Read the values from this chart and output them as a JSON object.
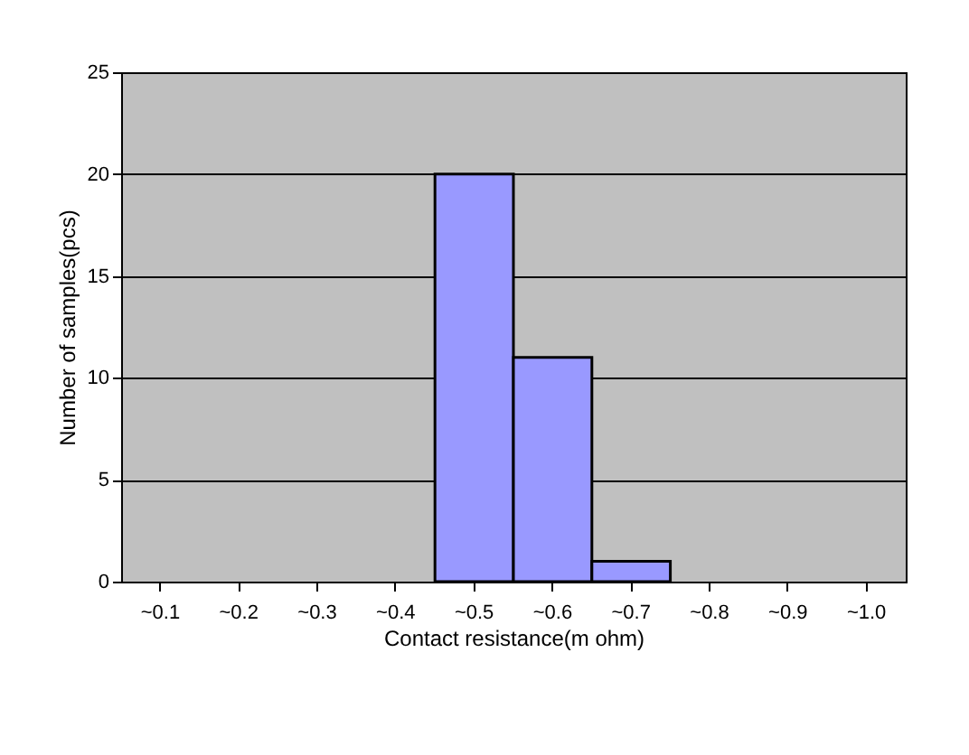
{
  "chart_data": {
    "type": "bar",
    "xlabel": "Contact  resistance(m ohm)",
    "ylabel": "Number  of samples(pcs)",
    "categories": [
      "~0.1",
      "~0.2",
      "~0.3",
      "~0.4",
      "~0.5",
      "~0.6",
      "~0.7",
      "~0.8",
      "~0.9",
      "~1.0"
    ],
    "values": [
      0,
      0,
      0,
      0,
      20,
      11,
      1,
      0,
      0,
      0
    ],
    "color": "#9999ff",
    "ylim": [
      0,
      25
    ],
    "yticks": [
      0,
      5,
      10,
      15,
      20,
      25
    ],
    "grid": "y"
  }
}
